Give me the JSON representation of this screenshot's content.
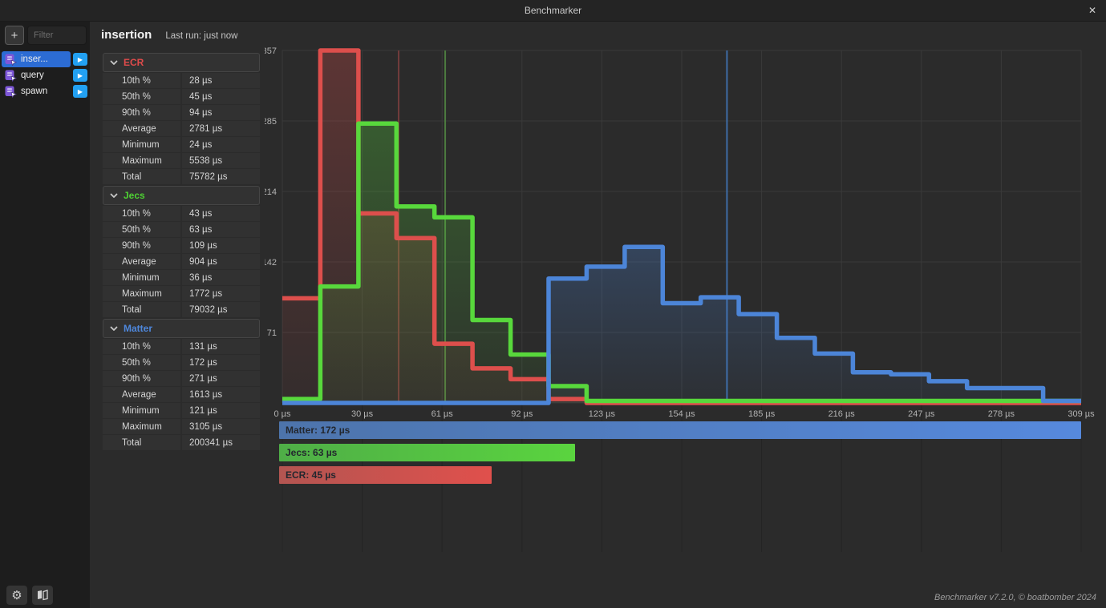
{
  "window": {
    "title": "Benchmarker",
    "close_label": "✕"
  },
  "toolbar": {
    "add_label": "+",
    "filter_placeholder": "Filter"
  },
  "icons": {
    "play": "▶",
    "gear": "⚙"
  },
  "sidebar": {
    "items": [
      {
        "label": "inser...",
        "selected": true
      },
      {
        "label": "query",
        "selected": false
      },
      {
        "label": "spawn",
        "selected": false
      }
    ]
  },
  "header": {
    "title": "insertion",
    "last_run": "Last run: just now"
  },
  "stats_sections": [
    {
      "name": "ECR",
      "color": "#e04b4b",
      "rows": [
        {
          "label": "10th %",
          "value": "28 µs"
        },
        {
          "label": "50th %",
          "value": "45 µs"
        },
        {
          "label": "90th %",
          "value": "94 µs"
        },
        {
          "label": "Average",
          "value": "2781 µs"
        },
        {
          "label": "Minimum",
          "value": "24 µs"
        },
        {
          "label": "Maximum",
          "value": "5538 µs"
        },
        {
          "label": "Total",
          "value": "75782 µs"
        }
      ]
    },
    {
      "name": "Jecs",
      "color": "#4ed133",
      "rows": [
        {
          "label": "10th %",
          "value": "43 µs"
        },
        {
          "label": "50th %",
          "value": "63 µs"
        },
        {
          "label": "90th %",
          "value": "109 µs"
        },
        {
          "label": "Average",
          "value": "904 µs"
        },
        {
          "label": "Minimum",
          "value": "36 µs"
        },
        {
          "label": "Maximum",
          "value": "1772 µs"
        },
        {
          "label": "Total",
          "value": "79032 µs"
        }
      ]
    },
    {
      "name": "Matter",
      "color": "#4e87dc",
      "rows": [
        {
          "label": "10th %",
          "value": "131 µs"
        },
        {
          "label": "50th %",
          "value": "172 µs"
        },
        {
          "label": "90th %",
          "value": "271 µs"
        },
        {
          "label": "Average",
          "value": "1613 µs"
        },
        {
          "label": "Minimum",
          "value": "121 µs"
        },
        {
          "label": "Maximum",
          "value": "3105 µs"
        },
        {
          "label": "Total",
          "value": "200341 µs"
        }
      ]
    }
  ],
  "chart_data": {
    "type": "step-histogram",
    "x_unit": "µs",
    "xlim": [
      0,
      309
    ],
    "ylim": [
      0,
      357
    ],
    "grid": true,
    "x_ticks": [
      {
        "v": 0,
        "label": "0 µs"
      },
      {
        "v": 30.9,
        "label": "30 µs"
      },
      {
        "v": 61.8,
        "label": "61 µs"
      },
      {
        "v": 92.7,
        "label": "92 µs"
      },
      {
        "v": 123.6,
        "label": "123 µs"
      },
      {
        "v": 154.5,
        "label": "154 µs"
      },
      {
        "v": 185.4,
        "label": "185 µs"
      },
      {
        "v": 216.3,
        "label": "216 µs"
      },
      {
        "v": 247.2,
        "label": "247 µs"
      },
      {
        "v": 278.1,
        "label": "278 µs"
      },
      {
        "v": 309,
        "label": "309 µs"
      }
    ],
    "y_ticks": [
      {
        "v": 357,
        "label": "357"
      },
      {
        "v": 285.6,
        "label": "285"
      },
      {
        "v": 214.2,
        "label": "214"
      },
      {
        "v": 142.8,
        "label": "142"
      },
      {
        "v": 71.4,
        "label": "71"
      },
      {
        "v": 0,
        "label": ""
      }
    ],
    "bin_edges": [
      0,
      14.71,
      29.43,
      44.14,
      58.86,
      73.57,
      88.29,
      103,
      117.71,
      132.43,
      147.14,
      161.86,
      176.57,
      191.29,
      206,
      220.71,
      235.43,
      250.14,
      264.86,
      279.57,
      294.29,
      309
    ],
    "series": [
      {
        "name": "ECR",
        "color": "#dd4f4c",
        "median": 45,
        "median_line_color": "#713c3c",
        "legend_label": "ECR: 45 µs",
        "bar_color_left": "#b35551",
        "bar_color_right": "#e0504c",
        "counts": [
          106,
          357,
          192,
          167,
          60,
          35,
          24,
          4,
          0,
          0,
          0,
          0,
          0,
          0,
          0,
          0,
          0,
          0,
          0,
          0,
          0
        ]
      },
      {
        "name": "Jecs",
        "color": "#58d83c",
        "median": 63,
        "median_line_color": "#4d7b40",
        "legend_label": "Jecs: 63 µs",
        "bar_color_left": "#4fae47",
        "bar_color_right": "#5ad43f",
        "counts": [
          4,
          118,
          283,
          199,
          188,
          84,
          49,
          17,
          2,
          2,
          2,
          2,
          2,
          2,
          2,
          2,
          2,
          2,
          2,
          2,
          2
        ]
      },
      {
        "name": "Matter",
        "color": "#4c85d8",
        "median": 172,
        "median_line_color": "#3e6ca6",
        "legend_label": "Matter: 172 µs",
        "bar_color_left": "#4d74ab",
        "bar_color_right": "#5689dd",
        "counts": [
          0,
          0,
          0,
          0,
          0,
          0,
          0,
          126,
          138,
          158,
          101,
          107,
          90,
          66,
          50,
          31,
          29,
          22,
          15,
          15,
          2
        ]
      }
    ],
    "legend_vertical_order": [
      "Matter",
      "Jecs",
      "ECR"
    ]
  },
  "footer": {
    "credit": "Benchmarker v7.2.0, © boatbomber 2024"
  }
}
